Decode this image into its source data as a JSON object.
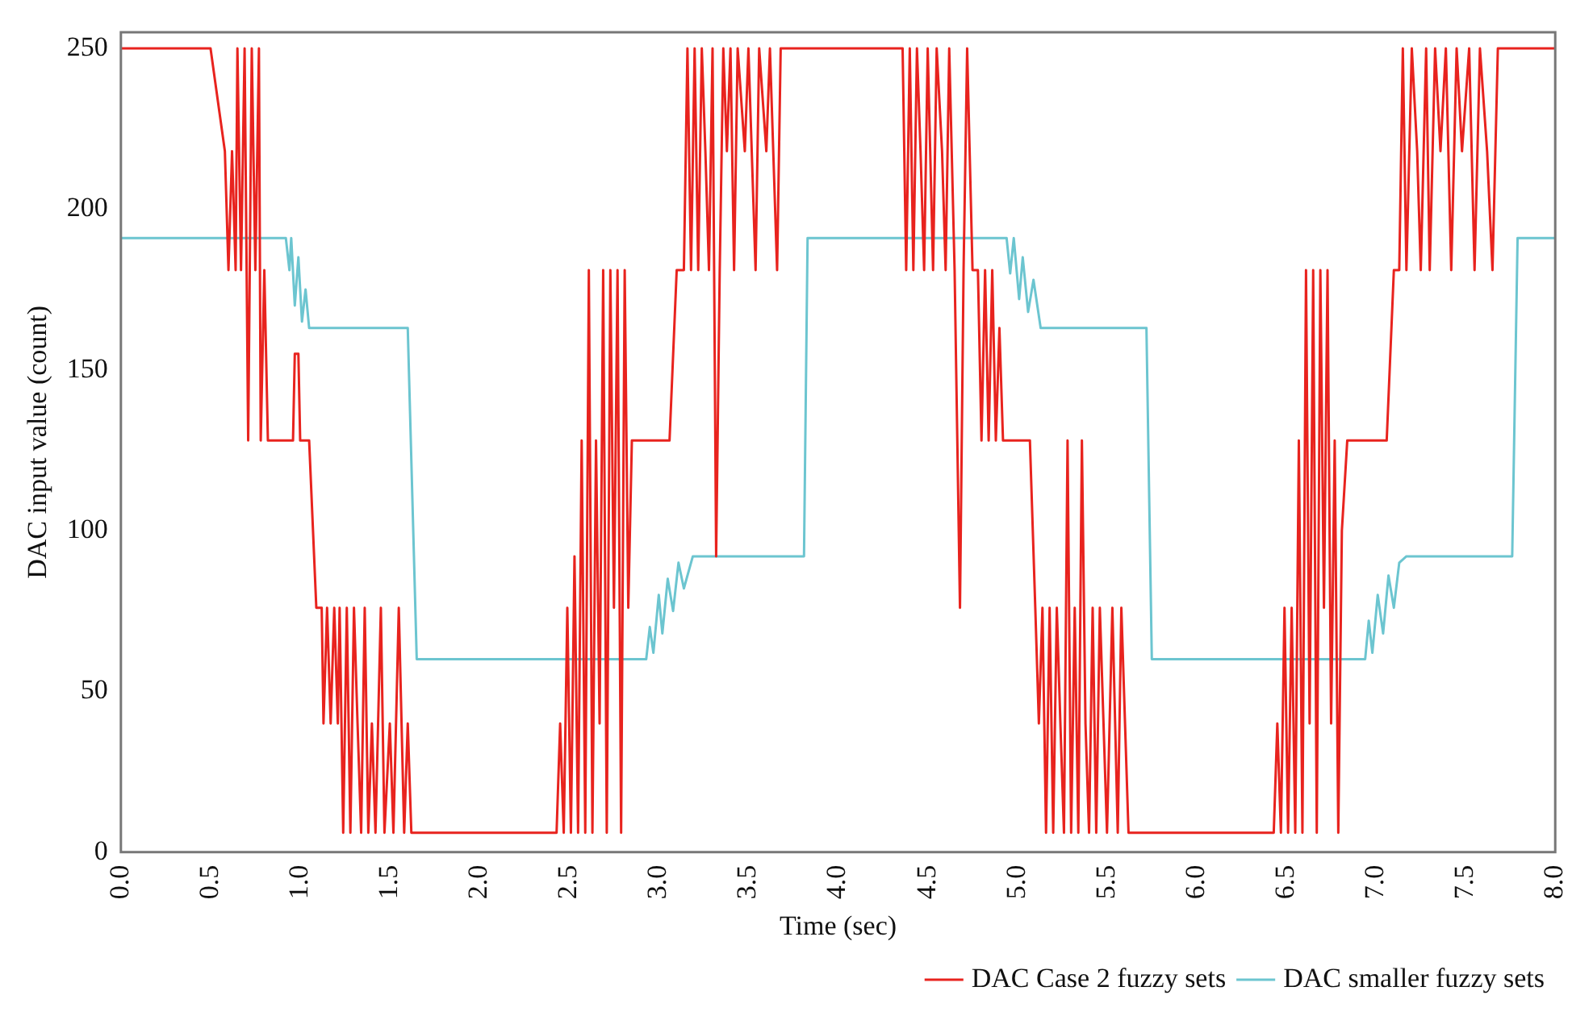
{
  "chart_data": {
    "type": "line",
    "xlabel": "Time (sec)",
    "ylabel": "DAC input value (count)",
    "xlim": [
      0,
      8
    ],
    "xticks": [
      {
        "value": 0,
        "label": "0.0"
      },
      {
        "value": 0.5,
        "label": "0.5"
      },
      {
        "value": 1,
        "label": "1.0"
      },
      {
        "value": 1.5,
        "label": "1.5"
      },
      {
        "value": 2,
        "label": "2.0"
      },
      {
        "value": 2.5,
        "label": "2.5"
      },
      {
        "value": 3,
        "label": "3.0"
      },
      {
        "value": 3.5,
        "label": "3.5"
      },
      {
        "value": 4,
        "label": "4.0"
      },
      {
        "value": 4.5,
        "label": "4.5"
      },
      {
        "value": 5,
        "label": "5.0"
      },
      {
        "value": 5.5,
        "label": "5.5"
      },
      {
        "value": 6,
        "label": "6.0"
      },
      {
        "value": 6.5,
        "label": "6.5"
      },
      {
        "value": 7,
        "label": "7.0"
      },
      {
        "value": 7.5,
        "label": "7.5"
      },
      {
        "value": 8,
        "label": "8.0"
      }
    ],
    "ylim": [
      0,
      255
    ],
    "yticks": [
      0,
      50,
      100,
      150,
      200,
      250
    ],
    "grid": false,
    "legend": "bottom right",
    "marker": "none",
    "line_style": "solid",
    "series": [
      {
        "name": "DAC Case 2 fuzzy sets",
        "color": "#e8231e",
        "x": [
          0,
          0.5,
          0.55,
          0.58,
          0.6,
          0.62,
          0.64,
          0.65,
          0.67,
          0.69,
          0.71,
          0.73,
          0.75,
          0.77,
          0.78,
          0.8,
          0.82,
          0.96,
          0.97,
          0.99,
          1,
          1.05,
          1.09,
          1.12,
          1.13,
          1.15,
          1.17,
          1.19,
          1.21,
          1.22,
          1.24,
          1.26,
          1.28,
          1.3,
          1.32,
          1.34,
          1.36,
          1.38,
          1.4,
          1.42,
          1.45,
          1.47,
          1.5,
          1.52,
          1.55,
          1.58,
          1.6,
          1.62,
          2.43,
          2.45,
          2.47,
          2.49,
          2.51,
          2.53,
          2.55,
          2.57,
          2.59,
          2.61,
          2.63,
          2.65,
          2.67,
          2.69,
          2.71,
          2.73,
          2.75,
          2.77,
          2.79,
          2.81,
          2.83,
          2.85,
          3.06,
          3.1,
          3.14,
          3.16,
          3.18,
          3.2,
          3.22,
          3.24,
          3.26,
          3.28,
          3.3,
          3.32,
          3.34,
          3.36,
          3.38,
          3.4,
          3.42,
          3.44,
          3.48,
          3.5,
          3.54,
          3.56,
          3.6,
          3.62,
          3.66,
          3.68,
          4.36,
          4.38,
          4.4,
          4.42,
          4.44,
          4.46,
          4.48,
          4.5,
          4.53,
          4.55,
          4.58,
          4.6,
          4.62,
          4.65,
          4.68,
          4.7,
          4.72,
          4.75,
          4.78,
          4.8,
          4.82,
          4.84,
          4.86,
          4.88,
          4.9,
          4.92,
          5.07,
          5.1,
          5.12,
          5.14,
          5.16,
          5.18,
          5.2,
          5.22,
          5.24,
          5.26,
          5.28,
          5.3,
          5.32,
          5.34,
          5.36,
          5.38,
          5.4,
          5.42,
          5.44,
          5.46,
          5.5,
          5.53,
          5.56,
          5.58,
          5.62,
          6.43,
          6.45,
          6.47,
          6.49,
          6.51,
          6.53,
          6.55,
          6.57,
          6.59,
          6.61,
          6.63,
          6.65,
          6.67,
          6.69,
          6.71,
          6.73,
          6.75,
          6.77,
          6.79,
          6.81,
          6.84,
          7.06,
          7.1,
          7.13,
          7.15,
          7.17,
          7.2,
          7.23,
          7.25,
          7.28,
          7.3,
          7.33,
          7.36,
          7.39,
          7.42,
          7.45,
          7.48,
          7.52,
          7.55,
          7.58,
          7.62,
          7.65,
          7.68,
          8
        ],
        "values": [
          250,
          250,
          230,
          218,
          181,
          218,
          181,
          250,
          181,
          250,
          128,
          250,
          181,
          250,
          128,
          181,
          128,
          128,
          155,
          155,
          128,
          128,
          76,
          76,
          40,
          76,
          40,
          76,
          40,
          76,
          6,
          76,
          6,
          76,
          40,
          6,
          76,
          6,
          40,
          6,
          76,
          6,
          40,
          6,
          76,
          6,
          40,
          6,
          6,
          40,
          6,
          76,
          6,
          92,
          6,
          128,
          6,
          181,
          6,
          128,
          40,
          181,
          6,
          181,
          76,
          181,
          6,
          181,
          76,
          128,
          128,
          181,
          181,
          250,
          181,
          250,
          181,
          250,
          218,
          181,
          250,
          92,
          181,
          250,
          218,
          250,
          181,
          250,
          218,
          250,
          181,
          250,
          218,
          250,
          181,
          250,
          250,
          181,
          250,
          181,
          250,
          218,
          181,
          250,
          181,
          250,
          218,
          181,
          250,
          181,
          76,
          181,
          250,
          181,
          181,
          128,
          181,
          128,
          181,
          128,
          163,
          128,
          128,
          76,
          40,
          76,
          6,
          76,
          6,
          76,
          40,
          6,
          128,
          6,
          76,
          6,
          128,
          40,
          6,
          76,
          6,
          76,
          6,
          76,
          6,
          76,
          6,
          6,
          40,
          6,
          76,
          6,
          76,
          6,
          128,
          6,
          181,
          40,
          181,
          6,
          181,
          76,
          181,
          40,
          128,
          6,
          100,
          128,
          128,
          181,
          181,
          250,
          181,
          250,
          218,
          181,
          250,
          181,
          250,
          218,
          250,
          181,
          250,
          218,
          250,
          181,
          250,
          218,
          181,
          250,
          250
        ]
      },
      {
        "name": "DAC smaller fuzzy sets",
        "color": "#6cc5d0",
        "x": [
          0,
          0.92,
          0.94,
          0.95,
          0.97,
          0.99,
          1.01,
          1.03,
          1.05,
          1.6,
          1.65,
          2.93,
          2.95,
          2.97,
          3,
          3.02,
          3.05,
          3.08,
          3.11,
          3.14,
          3.19,
          3.81,
          3.83,
          4.94,
          4.96,
          4.98,
          5.01,
          5.03,
          5.06,
          5.09,
          5.13,
          5.72,
          5.75,
          6.94,
          6.96,
          6.98,
          7.01,
          7.04,
          7.07,
          7.1,
          7.13,
          7.17,
          7.76,
          7.79,
          8
        ],
        "values": [
          191,
          191,
          181,
          191,
          170,
          185,
          165,
          175,
          163,
          163,
          60,
          60,
          70,
          62,
          80,
          68,
          85,
          75,
          90,
          82,
          92,
          92,
          191,
          191,
          180,
          191,
          172,
          185,
          168,
          178,
          163,
          163,
          60,
          60,
          72,
          62,
          80,
          68,
          86,
          76,
          90,
          92,
          92,
          191,
          191
        ]
      }
    ]
  }
}
